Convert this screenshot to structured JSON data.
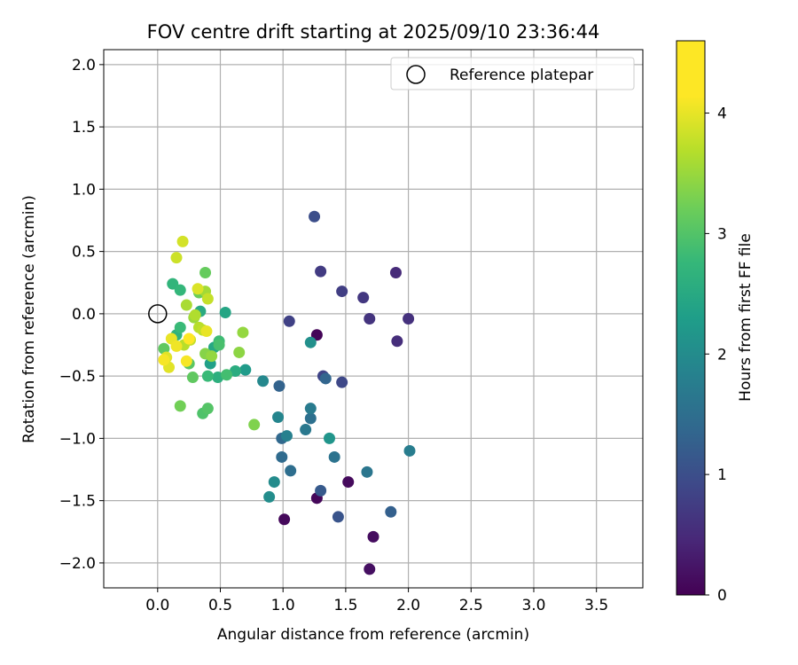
{
  "chart_data": {
    "type": "scatter",
    "title": "FOV centre drift starting at 2025/09/10 23:36:44",
    "xlabel": "Angular distance from reference (arcmin)",
    "ylabel": "Rotation from reference (arcmin)",
    "xlim": [
      -0.43,
      3.87
    ],
    "ylim": [
      -2.2,
      2.12
    ],
    "grid": true,
    "legend": {
      "label": "Reference platepar",
      "location": "top-right"
    },
    "colorbar": {
      "label": "Hours from first FF file",
      "colormap": "viridis",
      "range": [
        0,
        4.6
      ],
      "ticks": [
        0,
        1,
        2,
        3,
        4
      ]
    },
    "x_ticks": [
      {
        "value": 0.0,
        "label": "0.0"
      },
      {
        "value": 0.5,
        "label": "0.5"
      },
      {
        "value": 1.0,
        "label": "1.0"
      },
      {
        "value": 1.5,
        "label": "1.5"
      },
      {
        "value": 2.0,
        "label": "2.0"
      },
      {
        "value": 2.5,
        "label": "2.5"
      },
      {
        "value": 3.0,
        "label": "3.0"
      },
      {
        "value": 3.5,
        "label": "3.5"
      }
    ],
    "y_ticks": [
      {
        "value": 2.0,
        "label": "2.0"
      },
      {
        "value": 1.5,
        "label": "1.5"
      },
      {
        "value": 1.0,
        "label": "1.0"
      },
      {
        "value": 0.5,
        "label": "0.5"
      },
      {
        "value": 0.0,
        "label": "0.0"
      },
      {
        "value": -0.5,
        "label": "−0.5"
      },
      {
        "value": -1.0,
        "label": "−1.0"
      },
      {
        "value": -1.5,
        "label": "−1.5"
      },
      {
        "value": -2.0,
        "label": "−2.0"
      }
    ],
    "reference_point": {
      "x": 0.0,
      "y": 0.0
    },
    "points": [
      {
        "x": 1.27,
        "y": -0.17,
        "h": 0.05
      },
      {
        "x": 1.27,
        "y": -1.48,
        "h": 0.08
      },
      {
        "x": 1.01,
        "y": -1.65,
        "h": 0.1
      },
      {
        "x": 1.52,
        "y": -1.35,
        "h": 0.12
      },
      {
        "x": 1.72,
        "y": -1.79,
        "h": 0.15
      },
      {
        "x": 1.69,
        "y": -2.05,
        "h": 0.18
      },
      {
        "x": 1.9,
        "y": 0.33,
        "h": 0.55
      },
      {
        "x": 1.91,
        "y": -0.22,
        "h": 0.6
      },
      {
        "x": 2.0,
        "y": -0.04,
        "h": 0.65
      },
      {
        "x": 1.69,
        "y": -0.04,
        "h": 0.7
      },
      {
        "x": 1.64,
        "y": 0.13,
        "h": 0.75
      },
      {
        "x": 1.3,
        "y": 0.34,
        "h": 0.8
      },
      {
        "x": 1.47,
        "y": 0.18,
        "h": 0.85
      },
      {
        "x": 1.05,
        "y": -0.06,
        "h": 0.9
      },
      {
        "x": 1.32,
        "y": -0.5,
        "h": 0.95
      },
      {
        "x": 1.47,
        "y": -0.55,
        "h": 1.0
      },
      {
        "x": 1.25,
        "y": 0.78,
        "h": 1.1
      },
      {
        "x": 1.44,
        "y": -1.63,
        "h": 1.2
      },
      {
        "x": 1.3,
        "y": -1.42,
        "h": 1.3
      },
      {
        "x": 1.86,
        "y": -1.59,
        "h": 1.4
      },
      {
        "x": 0.97,
        "y": -0.58,
        "h": 1.45
      },
      {
        "x": 1.34,
        "y": -0.52,
        "h": 1.5
      },
      {
        "x": 0.99,
        "y": -1.0,
        "h": 1.55
      },
      {
        "x": 0.99,
        "y": -1.15,
        "h": 1.6
      },
      {
        "x": 1.06,
        "y": -1.26,
        "h": 1.65
      },
      {
        "x": 1.22,
        "y": -0.84,
        "h": 1.7
      },
      {
        "x": 1.41,
        "y": -1.15,
        "h": 1.75
      },
      {
        "x": 1.67,
        "y": -1.27,
        "h": 1.8
      },
      {
        "x": 1.18,
        "y": -0.93,
        "h": 1.85
      },
      {
        "x": 1.22,
        "y": -0.76,
        "h": 1.9
      },
      {
        "x": 2.01,
        "y": -1.1,
        "h": 1.95
      },
      {
        "x": 1.03,
        "y": -0.98,
        "h": 2.0
      },
      {
        "x": 0.96,
        "y": -0.83,
        "h": 2.1
      },
      {
        "x": 0.84,
        "y": -0.54,
        "h": 2.15
      },
      {
        "x": 0.93,
        "y": -1.35,
        "h": 2.2
      },
      {
        "x": 0.89,
        "y": -1.47,
        "h": 2.25
      },
      {
        "x": 1.22,
        "y": -0.23,
        "h": 2.3
      },
      {
        "x": 1.37,
        "y": -1.0,
        "h": 2.4
      },
      {
        "x": 0.7,
        "y": -0.45,
        "h": 2.5
      },
      {
        "x": 0.42,
        "y": -0.4,
        "h": 2.6
      },
      {
        "x": 0.54,
        "y": 0.01,
        "h": 2.7
      },
      {
        "x": 0.45,
        "y": -0.27,
        "h": 2.75
      },
      {
        "x": 0.34,
        "y": 0.02,
        "h": 2.8
      },
      {
        "x": 0.62,
        "y": -0.46,
        "h": 2.85
      },
      {
        "x": 0.48,
        "y": -0.51,
        "h": 2.9
      },
      {
        "x": 0.15,
        "y": -0.17,
        "h": 2.95
      },
      {
        "x": 0.12,
        "y": 0.24,
        "h": 3.0
      },
      {
        "x": 0.18,
        "y": 0.19,
        "h": 3.05
      },
      {
        "x": 0.18,
        "y": -0.11,
        "h": 3.1
      },
      {
        "x": 0.4,
        "y": -0.5,
        "h": 3.1
      },
      {
        "x": 0.49,
        "y": -0.22,
        "h": 3.15
      },
      {
        "x": 0.55,
        "y": -0.49,
        "h": 3.2
      },
      {
        "x": 0.49,
        "y": -0.25,
        "h": 3.25
      },
      {
        "x": 0.36,
        "y": -0.8,
        "h": 3.3
      },
      {
        "x": 0.4,
        "y": -0.76,
        "h": 3.35
      },
      {
        "x": 0.25,
        "y": -0.4,
        "h": 3.4
      },
      {
        "x": 0.28,
        "y": -0.51,
        "h": 3.45
      },
      {
        "x": 0.05,
        "y": -0.28,
        "h": 3.45
      },
      {
        "x": 0.38,
        "y": 0.33,
        "h": 3.5
      },
      {
        "x": 0.33,
        "y": 0.17,
        "h": 3.55
      },
      {
        "x": 0.18,
        "y": -0.74,
        "h": 3.6
      },
      {
        "x": 0.77,
        "y": -0.89,
        "h": 3.7
      },
      {
        "x": 0.38,
        "y": -0.32,
        "h": 3.75
      },
      {
        "x": 0.65,
        "y": -0.31,
        "h": 3.8
      },
      {
        "x": 0.43,
        "y": -0.34,
        "h": 3.85
      },
      {
        "x": 0.68,
        "y": -0.15,
        "h": 3.85
      },
      {
        "x": 0.29,
        "y": -0.03,
        "h": 3.9
      },
      {
        "x": 0.38,
        "y": 0.18,
        "h": 3.95
      },
      {
        "x": 0.23,
        "y": 0.07,
        "h": 4.0
      },
      {
        "x": 0.3,
        "y": -0.01,
        "h": 4.05
      },
      {
        "x": 0.21,
        "y": -0.25,
        "h": 4.1
      },
      {
        "x": 0.33,
        "y": -0.11,
        "h": 4.1
      },
      {
        "x": 0.36,
        "y": -0.13,
        "h": 4.15
      },
      {
        "x": 0.26,
        "y": -0.21,
        "h": 4.2
      },
      {
        "x": 0.4,
        "y": 0.12,
        "h": 4.2
      },
      {
        "x": 0.15,
        "y": 0.45,
        "h": 4.25
      },
      {
        "x": 0.2,
        "y": 0.58,
        "h": 4.3
      },
      {
        "x": 0.32,
        "y": 0.2,
        "h": 4.35
      },
      {
        "x": 0.09,
        "y": -0.43,
        "h": 4.4
      },
      {
        "x": 0.07,
        "y": -0.35,
        "h": 4.4
      },
      {
        "x": 0.39,
        "y": -0.14,
        "h": 4.45
      },
      {
        "x": 0.11,
        "y": -0.2,
        "h": 4.45
      },
      {
        "x": 0.15,
        "y": -0.26,
        "h": 4.5
      },
      {
        "x": 0.05,
        "y": -0.37,
        "h": 4.55
      },
      {
        "x": 0.23,
        "y": -0.38,
        "h": 4.55
      },
      {
        "x": 0.25,
        "y": -0.2,
        "h": 4.6
      }
    ]
  }
}
